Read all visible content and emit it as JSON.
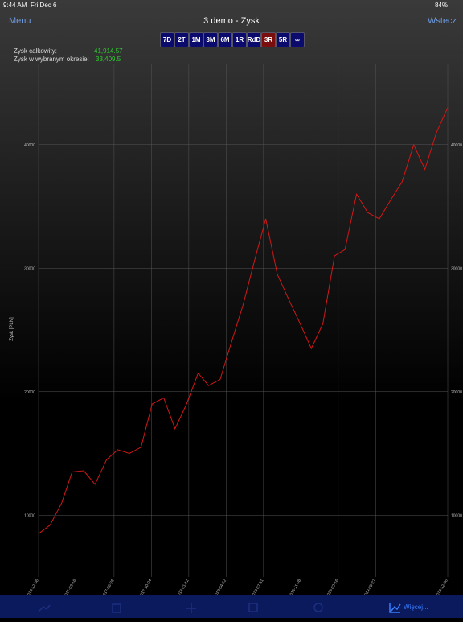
{
  "status_bar": {
    "time": "9:44 AM",
    "date": "Fri Dec 6",
    "battery": "84%"
  },
  "nav": {
    "left": "Menu",
    "title": "3 demo - Zysk",
    "right": "Wstecz"
  },
  "periods": [
    "7D",
    "2T",
    "1M",
    "3M",
    "6M",
    "1R",
    "RdD",
    "3R",
    "5R",
    "∞"
  ],
  "selected_period": "3R",
  "summary": {
    "total_label": "Zysk całkowity:",
    "total_value": "41,914.57",
    "period_label": "Zysk w wybranym okresie:",
    "period_value": "33,409.5"
  },
  "chart_data": {
    "type": "line",
    "y_label": "Zysk [PLN]",
    "x": [
      "2016-12-06",
      "2017-01-06",
      "2017-02-06",
      "2017-03-06",
      "2017-04-06",
      "2017-05-06",
      "2017-06-06",
      "2017-07-06",
      "2017-08-06",
      "2017-09-06",
      "2017-10-06",
      "2017-11-06",
      "2017-12-06",
      "2018-01-06",
      "2018-02-06",
      "2018-03-06",
      "2018-04-06",
      "2018-05-06",
      "2018-06-06",
      "2018-07-06",
      "2018-08-06",
      "2018-09-06",
      "2018-10-06",
      "2018-11-06",
      "2018-12-06",
      "2019-01-06",
      "2019-02-06",
      "2019-03-06",
      "2019-04-06",
      "2019-05-06",
      "2019-06-06",
      "2019-07-06",
      "2019-08-06",
      "2019-09-06",
      "2019-10-06",
      "2019-11-06",
      "2019-12-06"
    ],
    "series": [
      {
        "name": "Zysk",
        "color": "#d01818",
        "values": [
          8500,
          9200,
          11000,
          13500,
          13600,
          12500,
          14500,
          15300,
          15000,
          15500,
          19000,
          19500,
          17000,
          19000,
          21500,
          20500,
          21000,
          24000,
          27000,
          30500,
          34000,
          29500,
          27500,
          25500,
          23500,
          25500,
          31000,
          31500,
          36000,
          34500,
          34000,
          35500,
          37000,
          40000,
          38000,
          41000,
          43000
        ]
      }
    ],
    "xlim": [
      "2016-12-06",
      "2019-12-06"
    ],
    "xticks": [
      "2016-12-06",
      "2017-03-16",
      "2017-06-26",
      "2017-10-04",
      "2018-01-12",
      "2018-04-22",
      "2018-07-31",
      "2018-11-08",
      "2019-02-16",
      "2019-05-27",
      "2019-12-06"
    ],
    "ylim": [
      5000,
      46500
    ],
    "yticks": [
      10000,
      20000,
      30000,
      40000
    ],
    "grid": true
  },
  "tab_bar": {
    "selected": "Więcej..."
  }
}
